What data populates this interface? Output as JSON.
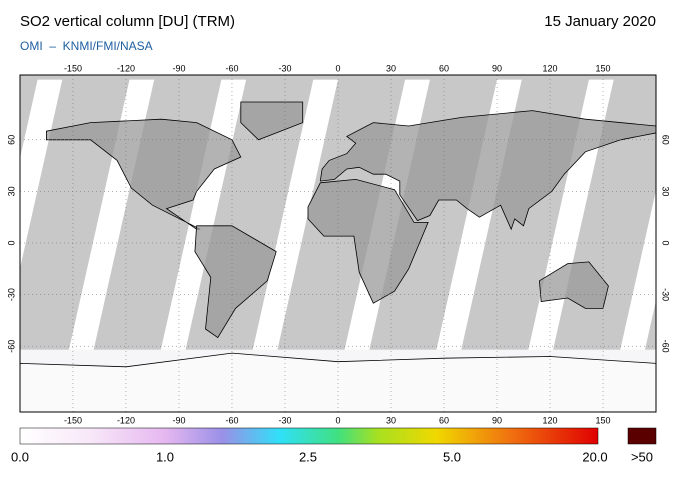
{
  "header": {
    "title": "SO2 vertical column [DU] (TRM)",
    "date": "15 January 2020",
    "subtitle": "OMI  –  KNMI/FMI/NASA"
  },
  "map": {
    "lon_ticks": [
      -150,
      -120,
      -90,
      -60,
      -30,
      0,
      30,
      60,
      90,
      120,
      150
    ],
    "lat_ticks": [
      60,
      30,
      0,
      -30,
      -60
    ]
  },
  "colorbar": {
    "labels": [
      "0.0",
      "1.0",
      "2.5",
      "5.0",
      "20.0",
      ">50"
    ]
  }
}
